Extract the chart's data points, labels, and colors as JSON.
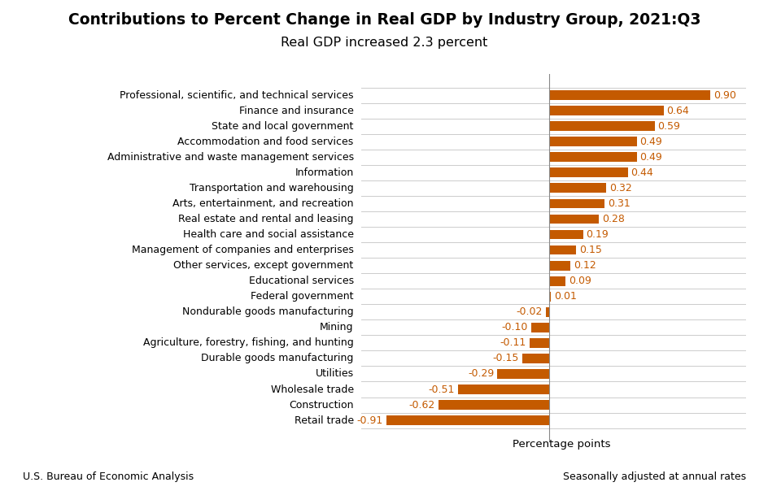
{
  "title": "Contributions to Percent Change in Real GDP by Industry Group, 2021:Q3",
  "subtitle": "Real GDP increased 2.3 percent",
  "categories": [
    "Professional, scientific, and technical services",
    "Finance and insurance",
    "State and local government",
    "Accommodation and food services",
    "Administrative and waste management services",
    "Information",
    "Transportation and warehousing",
    "Arts, entertainment, and recreation",
    "Real estate and rental and leasing",
    "Health care and social assistance",
    "Management of companies and enterprises",
    "Other services, except government",
    "Educational services",
    "Federal government",
    "Nondurable goods manufacturing",
    "Mining",
    "Agriculture, forestry, fishing, and hunting",
    "Durable goods manufacturing",
    "Utilities",
    "Wholesale trade",
    "Construction",
    "Retail trade"
  ],
  "values": [
    0.9,
    0.64,
    0.59,
    0.49,
    0.49,
    0.44,
    0.32,
    0.31,
    0.28,
    0.19,
    0.15,
    0.12,
    0.09,
    0.01,
    -0.02,
    -0.1,
    -0.11,
    -0.15,
    -0.29,
    -0.51,
    -0.62,
    -0.91
  ],
  "bar_color": "#C45A00",
  "text_color": "#000000",
  "background_color": "#FFFFFF",
  "grid_color": "#CCCCCC",
  "xlabel": "Percentage points",
  "footer_left": "U.S. Bureau of Economic Analysis",
  "footer_right": "Seasonally adjusted at annual rates",
  "xlim": [
    -1.05,
    1.1
  ],
  "title_fontsize": 13.5,
  "subtitle_fontsize": 11.5,
  "label_fontsize": 9,
  "value_fontsize": 9,
  "footer_fontsize": 9,
  "xlabel_fontsize": 9.5
}
